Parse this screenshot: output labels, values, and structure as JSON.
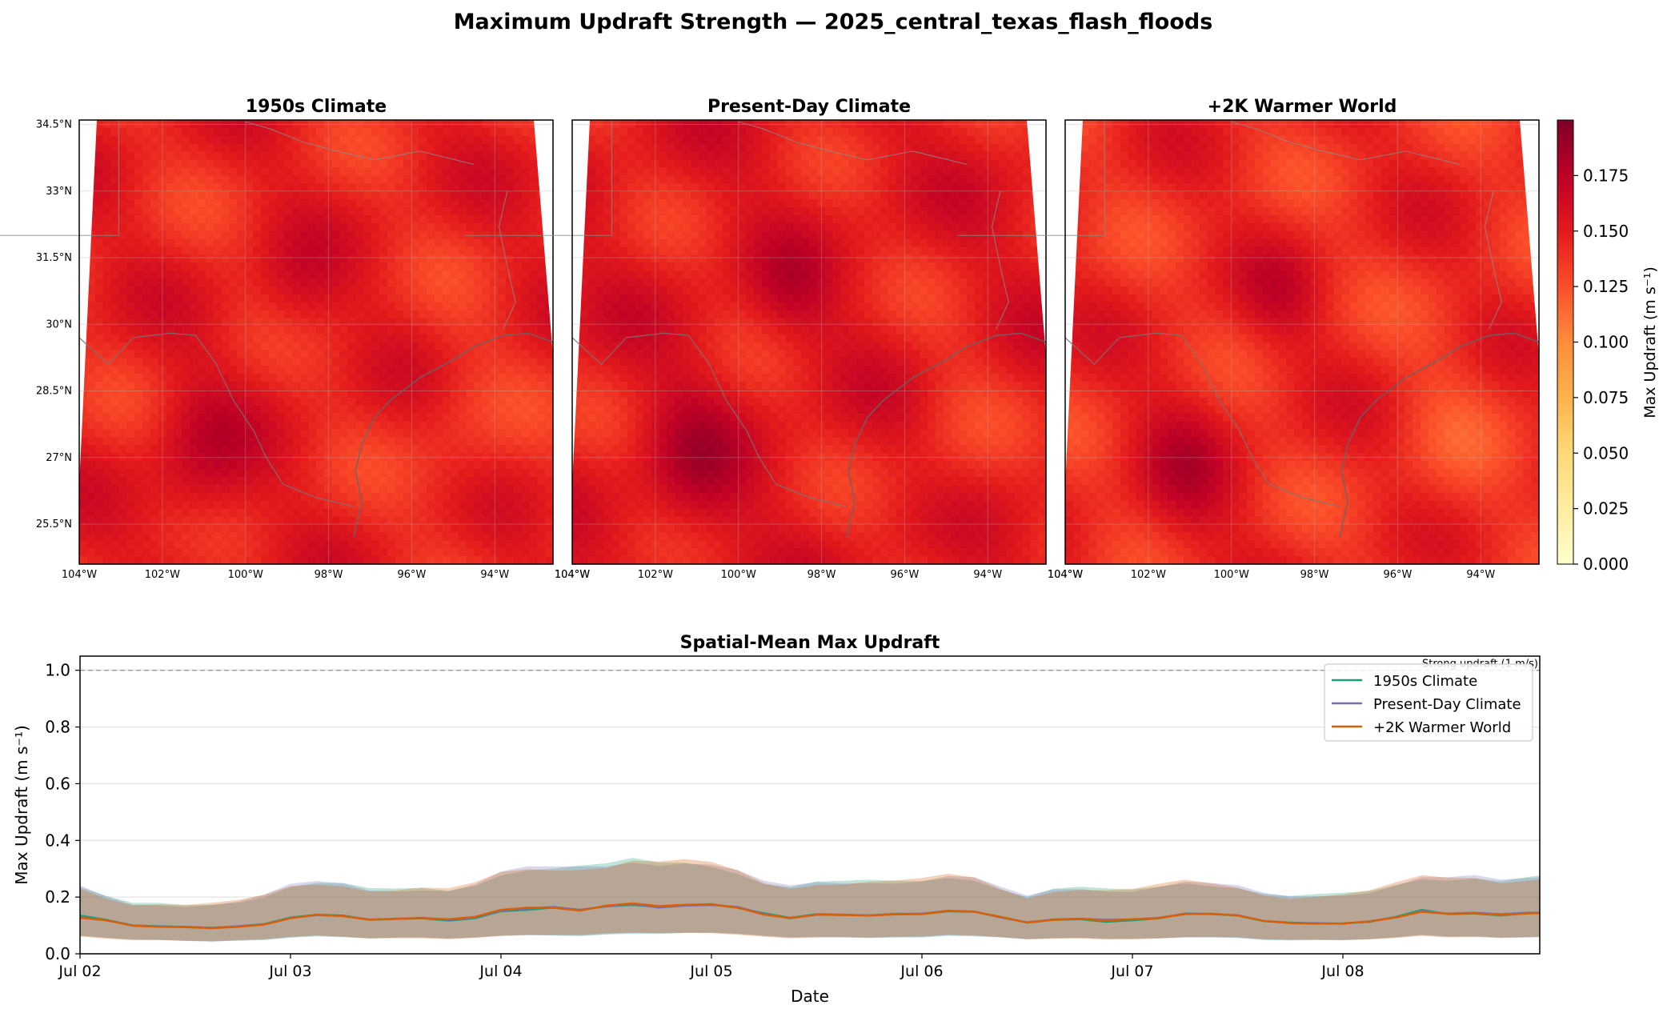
{
  "figure": {
    "title": "Maximum Updraft Strength — 2025_central_texas_flash_floods"
  },
  "chart_data": [
    {
      "type": "heatmap",
      "panels": [
        {
          "title": "1950s Climate",
          "variant": "1950s"
        },
        {
          "title": "Present-Day Climate",
          "variant": "present"
        },
        {
          "title": "+2K Warmer World",
          "variant": "plus2k"
        }
      ],
      "lat_ticks": [
        "34.5°N",
        "33°N",
        "31.5°N",
        "30°N",
        "28.5°N",
        "27°N",
        "25.5°N"
      ],
      "lat_values": [
        34.5,
        33,
        31.5,
        30,
        28.5,
        27,
        25.5
      ],
      "lon_ticks": [
        "104°W",
        "102°W",
        "100°W",
        "98°W",
        "96°W",
        "94°W"
      ],
      "lon_values": [
        -104,
        -102,
        -100,
        -98,
        -96,
        -94
      ],
      "lon_range": [
        -104,
        -92.6
      ],
      "lat_range": [
        24.6,
        34.6
      ],
      "colorbar": {
        "label": "Max Updraft (m s⁻¹)",
        "ticks": [
          "0.000",
          "0.025",
          "0.050",
          "0.075",
          "0.100",
          "0.125",
          "0.150",
          "0.175"
        ],
        "range": [
          0,
          0.2
        ],
        "colormap": "YlOrRd"
      },
      "typical_value_range": [
        0.11,
        0.19
      ]
    },
    {
      "type": "line",
      "title": "Spatial-Mean Max Updraft",
      "xlabel": "Date",
      "ylabel": "Max Updraft (m s⁻¹)",
      "x_ticks": [
        "Jul 02",
        "Jul 03",
        "Jul 04",
        "Jul 05",
        "Jul 06",
        "Jul 07",
        "Jul 08"
      ],
      "x_start": "Jul 02 00:00",
      "x_step_hours": 3,
      "ylim": [
        0,
        1.05
      ],
      "y_ticks": [
        "0.0",
        "0.2",
        "0.4",
        "0.6",
        "0.8",
        "1.0"
      ],
      "y_tick_values": [
        0,
        0.2,
        0.4,
        0.6,
        0.8,
        1.0
      ],
      "reference_line": {
        "value": 1.0,
        "label": "Strong updraft (1 m/s)"
      },
      "legend_position": "upper right",
      "grid": true,
      "series": [
        {
          "name": "1950s Climate",
          "color": "#1b9e77",
          "values": [
            0.135,
            0.12,
            0.1,
            0.097,
            0.095,
            0.092,
            0.097,
            0.105,
            0.128,
            0.138,
            0.135,
            0.12,
            0.123,
            0.125,
            0.117,
            0.125,
            0.15,
            0.155,
            0.163,
            0.155,
            0.167,
            0.172,
            0.165,
            0.172,
            0.175,
            0.162,
            0.143,
            0.127,
            0.14,
            0.138,
            0.135,
            0.141,
            0.14,
            0.15,
            0.148,
            0.13,
            0.11,
            0.12,
            0.122,
            0.113,
            0.118,
            0.125,
            0.142,
            0.14,
            0.135,
            0.115,
            0.11,
            0.107,
            0.107,
            0.113,
            0.13,
            0.155,
            0.14,
            0.142,
            0.135,
            0.143,
            0.145,
            0.136,
            0.158,
            0.158,
            0.165,
            0.162
          ]
        },
        {
          "name": "Present-Day Climate",
          "color": "#7570b3",
          "values": [
            0.128,
            0.118,
            0.1,
            0.096,
            0.095,
            0.091,
            0.097,
            0.104,
            0.126,
            0.137,
            0.133,
            0.121,
            0.123,
            0.127,
            0.12,
            0.128,
            0.152,
            0.16,
            0.165,
            0.155,
            0.168,
            0.175,
            0.163,
            0.17,
            0.172,
            0.165,
            0.14,
            0.125,
            0.138,
            0.137,
            0.136,
            0.14,
            0.142,
            0.152,
            0.149,
            0.128,
            0.111,
            0.121,
            0.124,
            0.12,
            0.121,
            0.127,
            0.141,
            0.141,
            0.136,
            0.116,
            0.109,
            0.108,
            0.106,
            0.115,
            0.128,
            0.15,
            0.142,
            0.145,
            0.14,
            0.145,
            0.146,
            0.14,
            0.16,
            0.16,
            0.163,
            0.16
          ]
        },
        {
          "name": "+2K Warmer World",
          "color": "#d95f02",
          "values": [
            0.127,
            0.118,
            0.099,
            0.095,
            0.094,
            0.09,
            0.095,
            0.103,
            0.125,
            0.138,
            0.133,
            0.12,
            0.124,
            0.126,
            0.122,
            0.13,
            0.155,
            0.163,
            0.162,
            0.152,
            0.17,
            0.178,
            0.168,
            0.173,
            0.174,
            0.163,
            0.138,
            0.126,
            0.138,
            0.137,
            0.135,
            0.139,
            0.14,
            0.151,
            0.148,
            0.13,
            0.11,
            0.12,
            0.123,
            0.118,
            0.122,
            0.126,
            0.14,
            0.141,
            0.135,
            0.116,
            0.108,
            0.106,
            0.107,
            0.114,
            0.128,
            0.148,
            0.141,
            0.143,
            0.137,
            0.142,
            0.144,
            0.14,
            0.155,
            0.158,
            0.157,
            0.15
          ]
        }
      ],
      "band_upper": [
        0.235,
        0.2,
        0.175,
        0.175,
        0.17,
        0.175,
        0.185,
        0.205,
        0.24,
        0.25,
        0.245,
        0.225,
        0.225,
        0.23,
        0.225,
        0.245,
        0.285,
        0.3,
        0.3,
        0.305,
        0.31,
        0.33,
        0.32,
        0.325,
        0.315,
        0.29,
        0.25,
        0.235,
        0.25,
        0.25,
        0.255,
        0.255,
        0.26,
        0.275,
        0.265,
        0.23,
        0.2,
        0.225,
        0.23,
        0.225,
        0.225,
        0.24,
        0.255,
        0.245,
        0.235,
        0.21,
        0.2,
        0.205,
        0.21,
        0.22,
        0.245,
        0.27,
        0.265,
        0.27,
        0.255,
        0.265,
        0.275,
        0.275,
        0.295,
        0.3,
        0.31,
        0.29
      ],
      "band_lower": [
        0.062,
        0.055,
        0.05,
        0.05,
        0.047,
        0.045,
        0.048,
        0.05,
        0.058,
        0.062,
        0.058,
        0.053,
        0.055,
        0.056,
        0.053,
        0.058,
        0.065,
        0.068,
        0.067,
        0.065,
        0.07,
        0.072,
        0.07,
        0.072,
        0.072,
        0.068,
        0.062,
        0.057,
        0.06,
        0.06,
        0.058,
        0.06,
        0.06,
        0.065,
        0.062,
        0.057,
        0.05,
        0.053,
        0.055,
        0.052,
        0.053,
        0.056,
        0.06,
        0.06,
        0.058,
        0.05,
        0.048,
        0.048,
        0.047,
        0.05,
        0.056,
        0.065,
        0.06,
        0.062,
        0.058,
        0.06,
        0.062,
        0.06,
        0.065,
        0.065,
        0.066,
        0.065
      ]
    }
  ]
}
